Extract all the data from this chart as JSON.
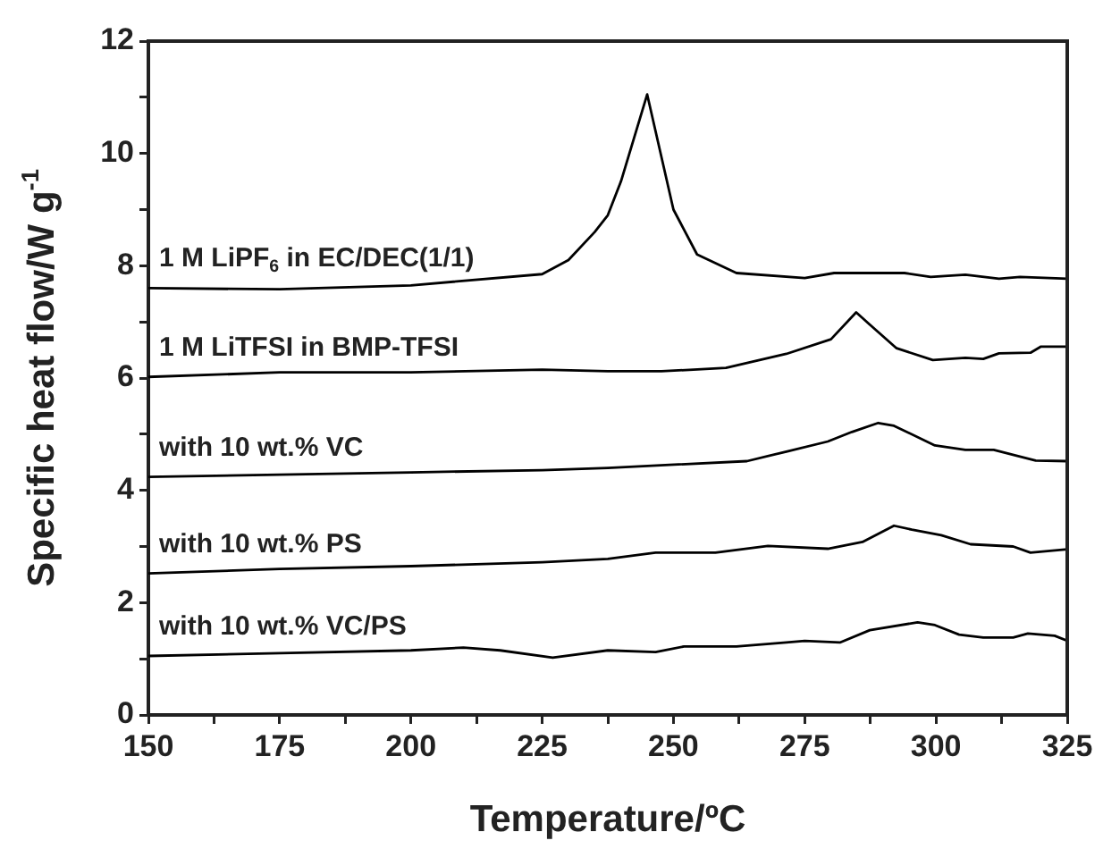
{
  "chart_data": {
    "type": "line",
    "xlabel": "Temperature/ºC",
    "ylabel": "Specific heat flow/W g$^{-1}$",
    "xlim": [
      150,
      325
    ],
    "ylim": [
      0,
      12
    ],
    "xticks": [
      150,
      {
        "value": 162.5,
        "label": null
      },
      175,
      {
        "value": 187.5,
        "label": null
      },
      200,
      {
        "value": 212.5,
        "label": null
      },
      225,
      {
        "value": 237.5,
        "label": null
      },
      250,
      {
        "value": 262.5,
        "label": null
      },
      275,
      {
        "value": 287.5,
        "label": null
      },
      300,
      {
        "value": 312.5,
        "label": null
      },
      325
    ],
    "yticks": [
      0,
      {
        "value": 1,
        "label": null
      },
      2,
      {
        "value": 3,
        "label": null
      },
      4,
      {
        "value": 5,
        "label": null
      },
      6,
      {
        "value": 7,
        "label": null
      },
      8,
      {
        "value": 9,
        "label": null
      },
      10,
      {
        "value": 11,
        "label": null
      },
      12
    ],
    "grid": false,
    "legend": false,
    "marker": "none",
    "line_style": "solid",
    "series": [
      {
        "name": "1 M LiPF$_{6}$ in EC/DEC(1/1)",
        "color": "#000000",
        "x": [
          150,
          175,
          200,
          225,
          230,
          235,
          237.5,
          240,
          245,
          250,
          254.5,
          262,
          275,
          280.6,
          294,
          299,
          305.6,
          312,
          316,
          325
        ],
        "values": [
          7.6,
          7.58,
          7.65,
          7.85,
          8.1,
          8.6,
          8.9,
          9.5,
          11.05,
          9.0,
          8.2,
          7.87,
          7.78,
          7.87,
          7.87,
          7.8,
          7.84,
          7.77,
          7.8,
          7.77
        ]
      },
      {
        "name": "1 M LiTFSI in BMP-TFSI",
        "color": "#000000",
        "x": [
          150,
          175,
          200,
          225,
          237.5,
          247.7,
          260,
          271.5,
          280,
          284.8,
          287.4,
          292.5,
          299.4,
          305.6,
          309,
          312,
          318,
          320,
          325
        ],
        "values": [
          6.02,
          6.1,
          6.1,
          6.15,
          6.12,
          6.12,
          6.18,
          6.43,
          6.69,
          7.17,
          6.95,
          6.53,
          6.32,
          6.36,
          6.34,
          6.44,
          6.45,
          6.56,
          6.56
        ]
      },
      {
        "name": "with 10 wt.% VC",
        "color": "#000000",
        "x": [
          150,
          175,
          200,
          225,
          237.5,
          264,
          271.5,
          279.4,
          284,
          289,
          292,
          299.8,
          305.6,
          311,
          319,
          325
        ],
        "values": [
          4.24,
          4.28,
          4.32,
          4.36,
          4.4,
          4.52,
          4.69,
          4.87,
          5.04,
          5.2,
          5.15,
          4.8,
          4.72,
          4.72,
          4.53,
          4.52
        ]
      },
      {
        "name": "with 10 wt.% PS",
        "color": "#000000",
        "x": [
          150,
          175,
          200,
          225,
          237.5,
          246.6,
          258,
          268,
          279.4,
          286,
          292,
          295.4,
          301,
          306.6,
          314.7,
          318,
          325
        ],
        "values": [
          2.52,
          2.6,
          2.65,
          2.72,
          2.78,
          2.89,
          2.89,
          3.01,
          2.96,
          3.08,
          3.37,
          3.3,
          3.2,
          3.04,
          3.0,
          2.89,
          2.95
        ]
      },
      {
        "name": "with 10 wt.% VC/PS",
        "color": "#000000",
        "x": [
          150,
          175,
          200,
          210,
          217,
          227,
          237.5,
          246.6,
          252,
          262,
          271.5,
          275,
          281.7,
          287.4,
          296.5,
          299.8,
          304.4,
          309,
          314.7,
          317.5,
          322.6,
          325
        ],
        "values": [
          1.05,
          1.1,
          1.15,
          1.2,
          1.15,
          1.02,
          1.15,
          1.12,
          1.22,
          1.22,
          1.29,
          1.32,
          1.29,
          1.51,
          1.65,
          1.6,
          1.43,
          1.38,
          1.38,
          1.45,
          1.41,
          1.32
        ]
      }
    ]
  }
}
